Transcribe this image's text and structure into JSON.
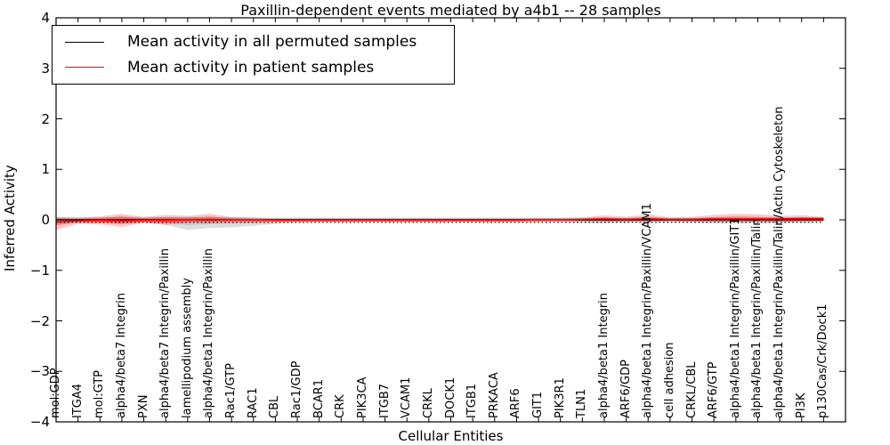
{
  "chart_data": {
    "type": "line",
    "title": "Paxillin-dependent events mediated by a4b1 -- 28 samples",
    "xlabel": "Cellular Entities",
    "ylabel": "Inferred Activity",
    "ylim": [
      -4,
      4
    ],
    "yticks": [
      4,
      3,
      2,
      1,
      0,
      -1,
      -2,
      -3,
      -4
    ],
    "grid": false,
    "legend_position": "upper left",
    "dotted_baseline": -0.05,
    "categories": [
      "mol:GDP",
      "ITGA4",
      "mol:GTP",
      "alpha4/beta7 Integrin",
      "PXN",
      "alpha4/beta7 Integrin/Paxillin",
      "lamellipodium assembly",
      "alpha4/beta1 Integrin/Paxillin",
      "Rac1/GTP",
      "RAC1",
      "CBL",
      "Rac1/GDP",
      "BCAR1",
      "CRK",
      "PIK3CA",
      "ITGB7",
      "VCAM1",
      "CRKL",
      "DOCK1",
      "ITGB1",
      "PRKACA",
      "ARF6",
      "GIT1",
      "PIK3R1",
      "TLN1",
      "alpha4/beta1 Integrin",
      "ARF6/GDP",
      "alpha4/beta1 Integrin/Paxillin/VCAM1",
      "cell adhesion",
      "CRKL/CBL",
      "ARF6/GTP",
      "alpha4/beta1 Integrin/Paxillin/GIT1",
      "alpha4/beta1 Integrin/Paxillin/Talin",
      "alpha4/beta1 Integrin/Paxillin/Talin/Actin Cytoskeleton",
      "PI3K",
      "p130Cas/Crk/Dock1"
    ],
    "series": [
      {
        "name": "Mean activity in all permuted samples",
        "color": "#000000",
        "band_color": "#999999",
        "values": [
          0,
          0,
          0,
          0,
          0,
          0,
          0,
          0,
          0,
          0,
          0,
          0,
          0,
          0,
          0,
          0,
          0,
          0,
          0,
          0,
          0,
          0,
          0,
          0,
          0,
          0,
          0,
          0,
          0,
          0,
          0,
          0,
          0,
          0,
          0,
          0
        ],
        "band_lo": [
          -0.07,
          -0.06,
          -0.06,
          -0.08,
          -0.06,
          -0.1,
          -0.2,
          -0.16,
          -0.15,
          -0.12,
          -0.08,
          -0.06,
          -0.05,
          -0.05,
          -0.05,
          -0.05,
          -0.05,
          -0.05,
          -0.05,
          -0.05,
          -0.05,
          -0.05,
          -0.05,
          -0.05,
          -0.06,
          -0.07,
          -0.05,
          -0.05,
          -0.05,
          -0.05,
          -0.05,
          -0.06,
          -0.06,
          -0.06,
          -0.05,
          -0.04
        ],
        "band_hi": [
          0.05,
          0.05,
          0.05,
          0.06,
          0.05,
          0.05,
          0.06,
          0.05,
          0.05,
          0.05,
          0.04,
          0.04,
          0.04,
          0.04,
          0.04,
          0.04,
          0.04,
          0.04,
          0.04,
          0.04,
          0.04,
          0.04,
          0.04,
          0.04,
          0.04,
          0.04,
          0.04,
          0.04,
          0.04,
          0.04,
          0.04,
          0.04,
          0.04,
          0.05,
          0.04,
          0.04
        ]
      },
      {
        "name": "Mean activity in patient samples",
        "color": "#ff0000",
        "band_color": "#ff0000",
        "values": [
          -0.04,
          -0.02,
          -0.01,
          -0.02,
          -0.01,
          -0.01,
          0.0,
          0.01,
          0.0,
          0.0,
          -0.01,
          -0.01,
          -0.01,
          -0.01,
          -0.01,
          -0.01,
          -0.01,
          -0.01,
          -0.01,
          -0.01,
          -0.01,
          -0.01,
          0.0,
          0.0,
          0.01,
          0.02,
          0.01,
          0.02,
          0.01,
          0.01,
          0.02,
          0.02,
          0.02,
          0.02,
          0.03,
          0.03
        ],
        "band_lo": [
          -0.2,
          -0.08,
          -0.09,
          -0.14,
          -0.06,
          -0.1,
          -0.06,
          -0.07,
          -0.05,
          -0.05,
          -0.04,
          -0.03,
          -0.03,
          -0.03,
          -0.03,
          -0.03,
          -0.03,
          -0.03,
          -0.03,
          -0.03,
          -0.03,
          -0.03,
          -0.03,
          -0.03,
          -0.03,
          -0.04,
          -0.04,
          -0.04,
          -0.03,
          -0.04,
          -0.05,
          -0.05,
          -0.05,
          -0.05,
          -0.04,
          -0.03
        ],
        "band_hi": [
          0.06,
          0.04,
          0.07,
          0.12,
          0.06,
          0.1,
          0.08,
          0.12,
          0.06,
          0.04,
          0.03,
          0.03,
          0.03,
          0.03,
          0.03,
          0.03,
          0.03,
          0.03,
          0.03,
          0.03,
          0.03,
          0.03,
          0.04,
          0.04,
          0.05,
          0.09,
          0.06,
          0.11,
          0.05,
          0.06,
          0.1,
          0.12,
          0.11,
          0.08,
          0.09,
          0.06
        ]
      }
    ]
  }
}
